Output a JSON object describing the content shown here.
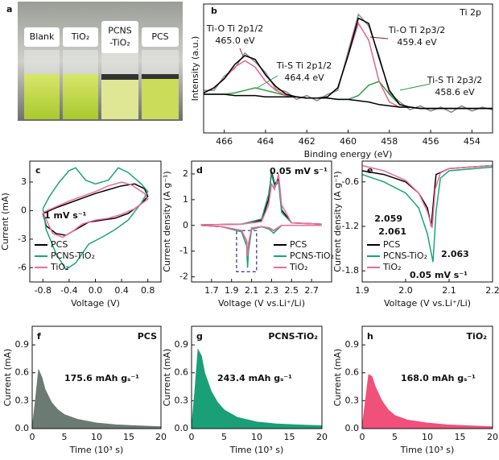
{
  "photo": {
    "panel": "a",
    "labels": [
      [
        "Blank"
      ],
      [
        "TiO₂"
      ],
      [
        "PCNS",
        "-TiO₂"
      ],
      [
        "PCS"
      ]
    ]
  },
  "chart_data": [
    {
      "type": "line",
      "panel": "b",
      "xlabel": "Binding energy (eV)",
      "ylabel": "Intensity (a.u.)",
      "xlim": [
        467,
        453
      ],
      "ylim": [
        0,
        1
      ],
      "xticks": [
        466,
        464,
        462,
        460,
        458,
        456,
        454
      ],
      "x": [
        467,
        466.5,
        466,
        465.5,
        465,
        464.5,
        464,
        463.5,
        463,
        462.5,
        462,
        461.5,
        461,
        460.5,
        460,
        459.5,
        459,
        458.5,
        458,
        457.5,
        457,
        456.5,
        456,
        455.5,
        455,
        454.5,
        454,
        453.5,
        453
      ],
      "series": [
        {
          "color": "#8a8a8a",
          "values": [
            0.33,
            0.33,
            0.44,
            0.5,
            0.62,
            0.55,
            0.47,
            0.34,
            0.32,
            0.26,
            0.29,
            0.25,
            0.3,
            0.33,
            0.63,
            0.92,
            0.83,
            0.6,
            0.31,
            0.24,
            0.18,
            0.21,
            0.17,
            0.2,
            0.16,
            0.21,
            0.17,
            0.2,
            0.18
          ]
        },
        {
          "color": "#2e9e3e",
          "values": [
            0.3,
            0.3,
            0.3,
            0.31,
            0.33,
            0.35,
            0.33,
            0.31,
            0.29,
            0.28,
            0.27,
            0.27,
            0.27,
            0.26,
            0.26,
            0.29,
            0.37,
            0.4,
            0.3,
            0.22,
            0.2,
            0.19,
            0.19,
            0.19,
            0.19,
            0.19,
            0.19,
            0.19,
            0.19
          ]
        },
        {
          "color": "#e8608a",
          "values": [
            0.31,
            0.35,
            0.42,
            0.51,
            0.56,
            0.51,
            0.4,
            0.33,
            0.29,
            0.28,
            0.27,
            0.27,
            0.28,
            0.35,
            0.6,
            0.85,
            0.72,
            0.4,
            0.24,
            0.2,
            0.2,
            0.19,
            0.19,
            0.19,
            0.19,
            0.19,
            0.19,
            0.19,
            0.19
          ]
        },
        {
          "color": "#000000",
          "values": [
            0.31,
            0.35,
            0.42,
            0.53,
            0.6,
            0.57,
            0.45,
            0.36,
            0.3,
            0.28,
            0.27,
            0.27,
            0.28,
            0.35,
            0.6,
            0.89,
            0.85,
            0.58,
            0.33,
            0.22,
            0.2,
            0.19,
            0.19,
            0.19,
            0.19,
            0.19,
            0.19,
            0.19,
            0.19
          ]
        },
        {
          "color": "#000000",
          "values": [
            0.3,
            0.3,
            0.3,
            0.29,
            0.29,
            0.29,
            0.28,
            0.28,
            0.28,
            0.28,
            0.27,
            0.27,
            0.27,
            0.26,
            0.26,
            0.25,
            0.24,
            0.22,
            0.21,
            0.2,
            0.2,
            0.19,
            0.19,
            0.19,
            0.19,
            0.19,
            0.19,
            0.19,
            0.19
          ]
        }
      ],
      "annotations": [
        {
          "text": "Ti 2p",
          "color": "#111111"
        },
        {
          "lines": [
            "Ti-O Ti 2p1/2",
            "465.0 eV"
          ],
          "color": "#8b1a1a"
        },
        {
          "lines": [
            "Ti-S Ti 2p1/2",
            "464.4 eV"
          ],
          "color": "#2e7d1e"
        },
        {
          "lines": [
            "Ti-O Ti 2p3/2",
            "459.4 eV"
          ],
          "color": "#8b1a1a"
        },
        {
          "lines": [
            "Ti-S Ti 2p3/2",
            "458.6 eV"
          ],
          "color": "#2e7d1e"
        }
      ]
    },
    {
      "type": "line",
      "panel": "c",
      "xlabel": "Voltage (V)",
      "ylabel": "Current (mA)",
      "xlim": [
        -1.0,
        1.0
      ],
      "ylim": [
        -7.5,
        5.2
      ],
      "xticks": [
        -0.8,
        -0.4,
        {
          "value": 0,
          "label": "0.0"
        },
        0.4,
        0.8
      ],
      "yticks": [
        -6,
        -3,
        0,
        3
      ],
      "legend": "lower left",
      "series": [
        {
          "name": "PCS",
          "color": "#000000",
          "x": [
            -0.8,
            -0.6,
            -0.4,
            -0.2,
            0,
            0.2,
            0.4,
            0.6,
            0.75,
            0.8,
            0.7,
            0.5,
            0.3,
            0.1,
            -0.1,
            -0.3,
            -0.45,
            -0.6,
            -0.75,
            -0.8
          ],
          "values": [
            -0.3,
            0.3,
            0.8,
            1.3,
            1.8,
            2.2,
            2.6,
            2.8,
            2.3,
            1.5,
            0.7,
            -0.3,
            -0.8,
            -1.0,
            -1.2,
            -2.0,
            -2.6,
            -2.4,
            -1.6,
            -0.3
          ]
        },
        {
          "name": "PCNS-TiO₂",
          "color": "#1aa57a",
          "x": [
            -0.8,
            -0.7,
            -0.55,
            -0.4,
            -0.3,
            -0.15,
            0,
            0.2,
            0.35,
            0.5,
            0.7,
            0.8,
            0.7,
            0.5,
            0.3,
            0.1,
            -0.1,
            -0.3,
            -0.45,
            -0.6,
            -0.75,
            -0.8
          ],
          "values": [
            0.2,
            1.5,
            3.0,
            4.2,
            4.5,
            3.2,
            2.8,
            3.2,
            4.5,
            4.0,
            2.8,
            2.0,
            0.8,
            -1.0,
            -2.0,
            -2.8,
            -3.5,
            -5.5,
            -6.2,
            -4.5,
            -2.0,
            0.2
          ]
        },
        {
          "name": "TiO₂",
          "color": "#f06a9a",
          "x": [
            -0.8,
            -0.6,
            -0.4,
            -0.2,
            0,
            0.2,
            0.4,
            0.55,
            0.75,
            0.8,
            0.6,
            0.4,
            0.2,
            0,
            -0.2,
            -0.35,
            -0.5,
            -0.65,
            -0.8
          ],
          "values": [
            -0.2,
            0.4,
            1.0,
            1.5,
            2.0,
            2.6,
            3.0,
            2.7,
            1.8,
            1.2,
            0.2,
            -0.4,
            -0.8,
            -1.0,
            -1.4,
            -2.2,
            -2.8,
            -2.4,
            -0.2
          ]
        }
      ],
      "annotations": [
        {
          "text": "1 mV s⁻¹",
          "color": "#111111"
        }
      ]
    },
    {
      "type": "line",
      "panel": "d",
      "xlabel": "Voltage (V vs.Li⁺/Li)",
      "ylabel": "Current density (A g⁻¹)",
      "xlim": [
        1.5,
        2.9
      ],
      "ylim": [
        -2.2,
        2.5
      ],
      "xticks": [
        1.7,
        1.9,
        2.1,
        2.3,
        2.5,
        2.7
      ],
      "yticks": [
        -2,
        -1,
        0,
        1,
        2
      ],
      "legend": "lower right",
      "series": [
        {
          "name": "PCS",
          "color": "#000000",
          "x": [
            2.8,
            2.4,
            2.32,
            2.28,
            2.2,
            2.1,
            2.07,
            2.06,
            2.05,
            2.0,
            1.8,
            1.6,
            1.6,
            2.0,
            2.2,
            2.27,
            2.3,
            2.33,
            2.37,
            2.4,
            2.5,
            2.8
          ],
          "values": [
            0,
            0,
            -0.2,
            -0.1,
            -0.05,
            -0.1,
            -0.8,
            -1.2,
            -0.6,
            -0.2,
            -0.05,
            0,
            0.02,
            0.05,
            0.2,
            1.0,
            2.1,
            1.6,
            1.8,
            0.6,
            0.1,
            0.05
          ]
        },
        {
          "name": "PCNS-TiO₂",
          "color": "#1aa57a",
          "x": [
            2.8,
            2.4,
            2.32,
            2.28,
            2.2,
            2.1,
            2.07,
            2.06,
            2.05,
            2.0,
            1.8,
            1.6,
            1.6,
            2.0,
            2.2,
            2.27,
            2.3,
            2.33,
            2.37,
            2.4,
            2.5,
            2.8
          ],
          "values": [
            0,
            0,
            -0.3,
            -0.15,
            -0.05,
            -0.15,
            -1.0,
            -1.65,
            -0.8,
            -0.25,
            -0.05,
            0,
            0.02,
            0.05,
            0.25,
            1.2,
            2.0,
            1.5,
            1.7,
            0.5,
            0.1,
            0.05
          ]
        },
        {
          "name": "TiO₂",
          "color": "#f06a9a",
          "x": [
            2.8,
            2.4,
            2.32,
            2.28,
            2.2,
            2.1,
            2.07,
            2.06,
            2.05,
            2.0,
            1.8,
            1.6,
            1.6,
            2.0,
            2.2,
            2.27,
            2.3,
            2.33,
            2.37,
            2.4,
            2.5,
            2.8
          ],
          "values": [
            0,
            0,
            -0.2,
            -0.1,
            -0.05,
            -0.1,
            -0.7,
            -1.2,
            -0.6,
            -0.2,
            -0.05,
            0,
            0.02,
            0.05,
            0.15,
            0.8,
            1.6,
            1.4,
            2.0,
            0.8,
            0.1,
            0.05
          ]
        }
      ],
      "annotations": [
        {
          "text": "0.05 mV s⁻¹",
          "color": "#111111"
        }
      ]
    },
    {
      "type": "line",
      "panel": "e",
      "xlabel": "Voltage (V vs.Li⁺/Li)",
      "ylabel": "Current density (A g⁻¹)",
      "xlim": [
        1.9,
        2.2
      ],
      "ylim": [
        -1.95,
        -0.32
      ],
      "xticks": [
        1.9,
        {
          "value": 2,
          "label": "2.0"
        },
        2.1,
        2.2
      ],
      "yticks": [
        -1.8,
        -1.2,
        -0.6
      ],
      "legend": "lower left",
      "series": [
        {
          "name": "PCS",
          "color": "#000000",
          "x": [
            1.9,
            1.95,
            2.0,
            2.03,
            2.05,
            2.059,
            2.065,
            2.07,
            2.1,
            2.2
          ],
          "values": [
            -0.45,
            -0.5,
            -0.6,
            -0.75,
            -0.95,
            -1.2,
            -0.8,
            -0.5,
            -0.42,
            -0.38
          ]
        },
        {
          "name": "PCNS-TiO₂",
          "color": "#1aa57a",
          "x": [
            1.9,
            1.95,
            2.0,
            2.03,
            2.05,
            2.063,
            2.07,
            2.08,
            2.1,
            2.2
          ],
          "values": [
            -0.5,
            -0.6,
            -0.75,
            -0.95,
            -1.3,
            -1.68,
            -1.0,
            -0.55,
            -0.45,
            -0.4
          ]
        },
        {
          "name": "TiO₂",
          "color": "#f06a9a",
          "x": [
            1.9,
            1.95,
            2.0,
            2.03,
            2.05,
            2.061,
            2.068,
            2.08,
            2.1,
            2.2
          ],
          "values": [
            -0.38,
            -0.45,
            -0.58,
            -0.75,
            -1.0,
            -1.22,
            -0.7,
            -0.48,
            -0.42,
            -0.38
          ]
        }
      ],
      "annotations": [
        {
          "text": "2.059",
          "color": "#000000"
        },
        {
          "text": "2.061",
          "color": "#f06a9a"
        },
        {
          "text": "2.063",
          "color": "#1aa57a"
        },
        {
          "text": "0.05 mV s⁻¹",
          "color": "#111111"
        }
      ]
    },
    {
      "type": "area",
      "panel": "f",
      "xlabel": "Time (10³ s)",
      "ylabel": "Current (mA)",
      "xlim": [
        0,
        20
      ],
      "ylim": [
        0,
        1.1
      ],
      "xticks": [
        0,
        5,
        10,
        15,
        20
      ],
      "yticks": [
        {
          "value": 0,
          "label": "0.0"
        },
        0.3,
        0.6,
        0.9
      ],
      "x": [
        0,
        0.5,
        1,
        1.5,
        2,
        3,
        4,
        5,
        7,
        10,
        13,
        16,
        20
      ],
      "series": [
        {
          "color": "#6b7a72",
          "values": [
            0,
            0.3,
            0.63,
            0.55,
            0.42,
            0.28,
            0.2,
            0.15,
            0.1,
            0.06,
            0.04,
            0.03,
            0.02
          ]
        }
      ],
      "annotations": [
        {
          "text": "PCS",
          "color": "#111111"
        },
        {
          "text": "175.6 mAh gₛ⁻¹",
          "color": "#111111"
        }
      ]
    },
    {
      "type": "area",
      "panel": "g",
      "xlabel": "Time (10³ s)",
      "ylabel": "Current (mA)",
      "xlim": [
        0,
        20
      ],
      "ylim": [
        0,
        1.1
      ],
      "xticks": [
        0,
        5,
        10,
        15,
        20
      ],
      "yticks": [
        {
          "value": 0,
          "label": "0.0"
        },
        0.3,
        0.6,
        0.9
      ],
      "x": [
        0,
        0.5,
        1,
        1.5,
        2,
        3,
        4,
        5,
        7,
        10,
        13,
        16,
        20
      ],
      "series": [
        {
          "color": "#1a9f76",
          "values": [
            0,
            0.4,
            0.85,
            0.78,
            0.6,
            0.4,
            0.28,
            0.2,
            0.12,
            0.07,
            0.05,
            0.04,
            0.03
          ]
        }
      ],
      "annotations": [
        {
          "text": "PCNS-TiO₂",
          "color": "#1a9f76"
        },
        {
          "text": "243.4 mAh gₛ⁻¹",
          "color": "#1f2d8a"
        }
      ]
    },
    {
      "type": "area",
      "panel": "h",
      "xlabel": "Time (10³ s)",
      "ylabel": "Current (mA)",
      "xlim": [
        0,
        20
      ],
      "ylim": [
        0,
        1.1
      ],
      "xticks": [
        0,
        5,
        10,
        15,
        20
      ],
      "yticks": [
        {
          "value": 0,
          "label": "0.0"
        },
        0.3,
        0.6,
        0.9
      ],
      "x": [
        0,
        0.5,
        1,
        1.5,
        2,
        3,
        4,
        5,
        7,
        10,
        13,
        16,
        20
      ],
      "series": [
        {
          "color": "#f0507a",
          "values": [
            0,
            0.3,
            0.58,
            0.56,
            0.45,
            0.3,
            0.2,
            0.14,
            0.09,
            0.06,
            0.04,
            0.03,
            0.02
          ]
        }
      ],
      "annotations": [
        {
          "text": "TiO₂",
          "color": "#f0507a"
        },
        {
          "text": "168.0 mAh gₛ⁻¹",
          "color": "#e0203a"
        }
      ]
    }
  ]
}
